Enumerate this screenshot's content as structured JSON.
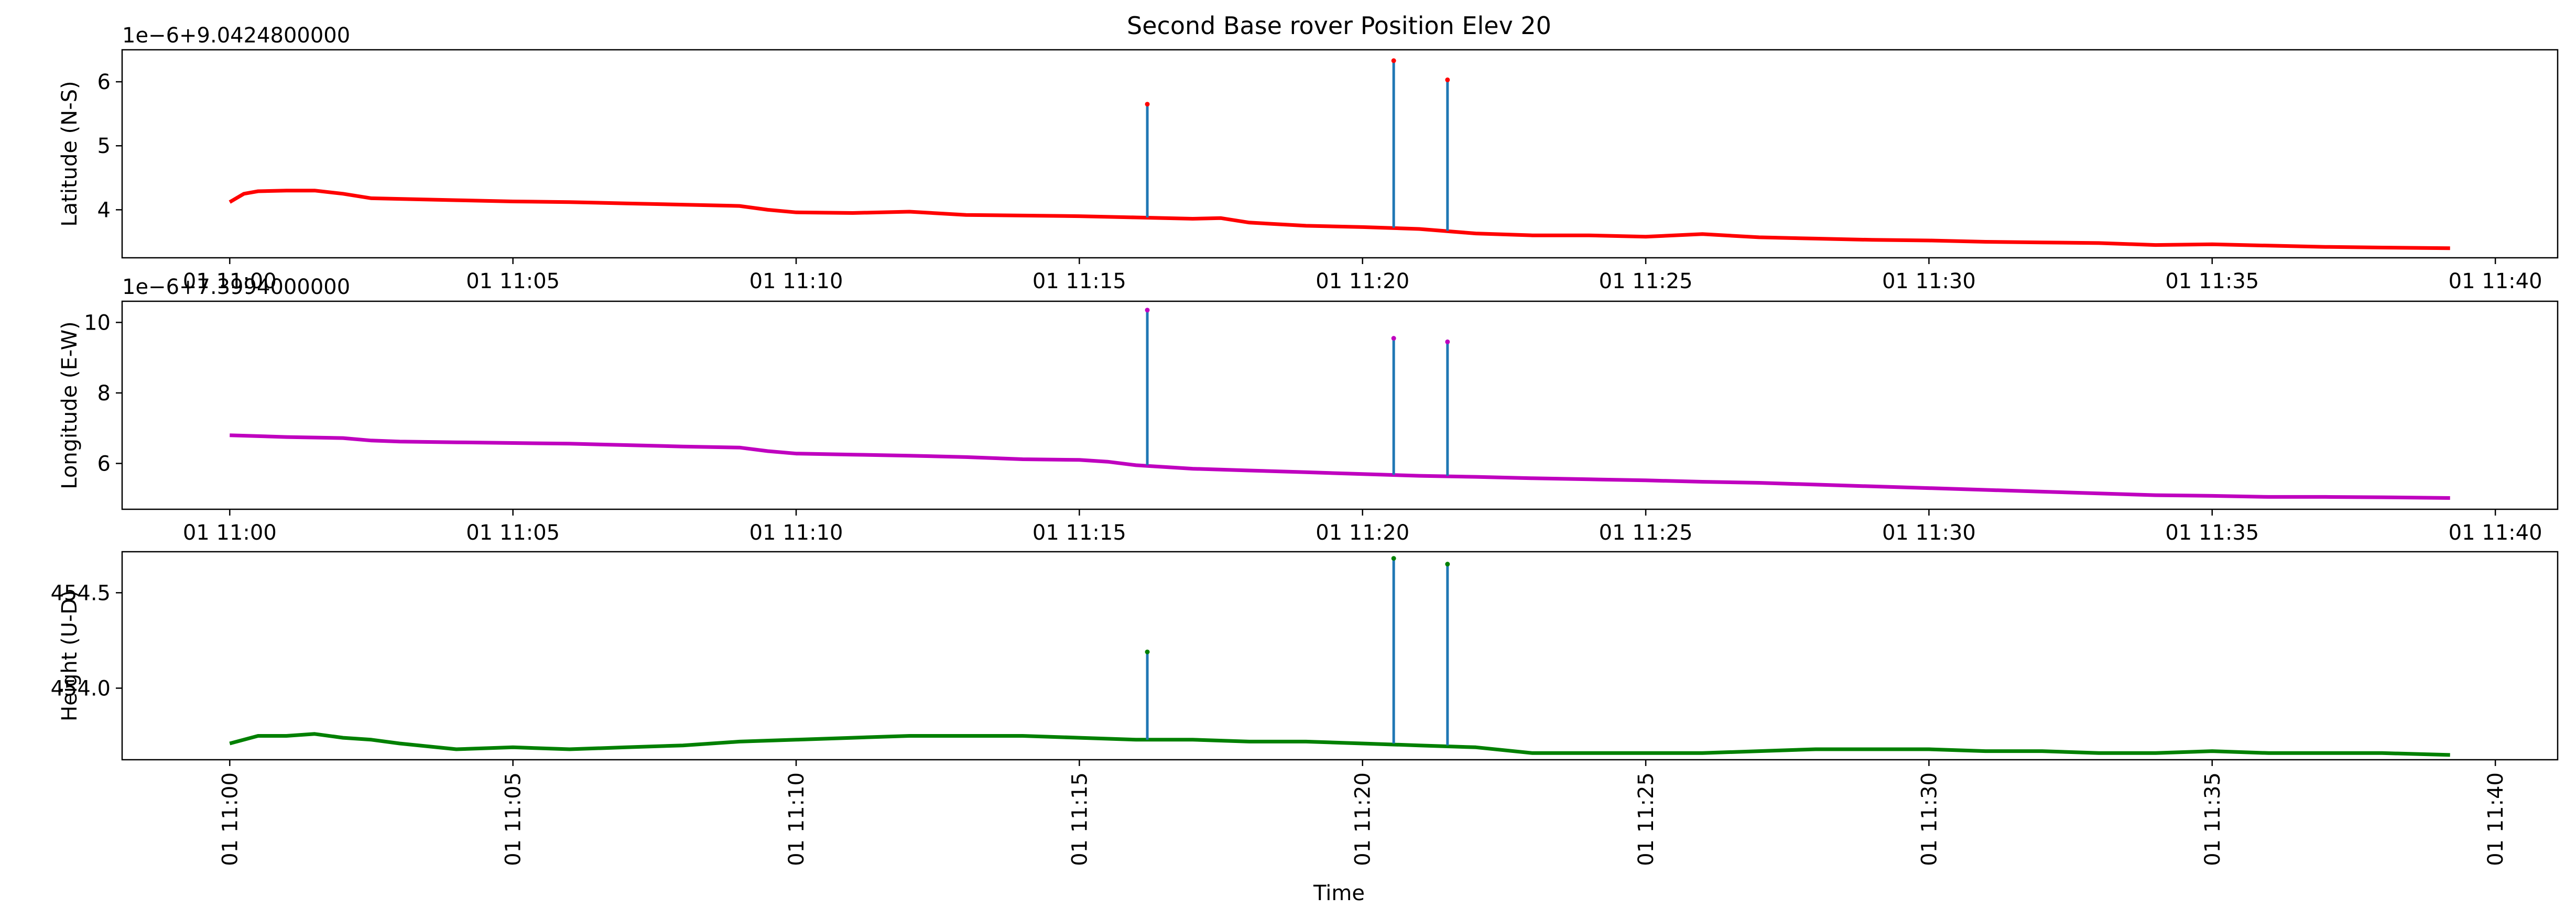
{
  "figure_title": "Second Base rover Position Elev 20",
  "x_axis_label": "Time",
  "chart_data": [
    {
      "type": "line",
      "ylabel": "Latitude (N-S)",
      "offset_text": "1e−6+9.0424800000",
      "x_tick_labels": [
        "01 11:00",
        "01 11:05",
        "01 11:10",
        "01 11:15",
        "01 11:20",
        "01 11:25",
        "01 11:30",
        "01 11:35",
        "01 11:40"
      ],
      "x_tick_minutes": [
        0,
        5,
        10,
        15,
        20,
        25,
        30,
        35,
        40
      ],
      "x_range_minutes": [
        -1.9,
        41.1
      ],
      "y_tick_labels": [
        "4",
        "5",
        "6"
      ],
      "y_ticks": [
        4,
        5,
        6
      ],
      "ylim": [
        3.25,
        6.5
      ],
      "line_color": "#ff0000",
      "spike_color": "#1f77b4",
      "spike_marker_color": "#ff0000",
      "grid": false,
      "series": [
        {
          "x_minutes": [
            0,
            0.25,
            0.5,
            1,
            1.5,
            2,
            2.5,
            3,
            4,
            5,
            6,
            7,
            8,
            9,
            9.5,
            10,
            11,
            12,
            13,
            14,
            15,
            16,
            17,
            17.5,
            18,
            19,
            20,
            21,
            22,
            23,
            24,
            25,
            26,
            27,
            28,
            29,
            30,
            31,
            32,
            33,
            34,
            35,
            36,
            37,
            38,
            39.2
          ],
          "values": [
            4.12,
            4.25,
            4.29,
            4.3,
            4.3,
            4.25,
            4.18,
            4.17,
            4.15,
            4.13,
            4.12,
            4.1,
            4.08,
            4.06,
            4.0,
            3.96,
            3.95,
            3.97,
            3.92,
            3.91,
            3.9,
            3.88,
            3.86,
            3.87,
            3.8,
            3.75,
            3.73,
            3.7,
            3.63,
            3.6,
            3.6,
            3.58,
            3.62,
            3.57,
            3.55,
            3.53,
            3.52,
            3.5,
            3.49,
            3.48,
            3.45,
            3.46,
            3.44,
            3.42,
            3.41,
            3.4
          ]
        }
      ],
      "spikes": [
        {
          "x_minutes": 16.2,
          "peak": 5.65,
          "base": 3.88
        },
        {
          "x_minutes": 20.55,
          "peak": 6.33,
          "base": 3.72
        },
        {
          "x_minutes": 21.5,
          "peak": 6.03,
          "base": 3.67
        }
      ]
    },
    {
      "type": "line",
      "ylabel": "Longitude (E-W)",
      "offset_text": "1e−6+7.3994000000",
      "x_tick_labels": [
        "01 11:00",
        "01 11:05",
        "01 11:10",
        "01 11:15",
        "01 11:20",
        "01 11:25",
        "01 11:30",
        "01 11:35",
        "01 11:40"
      ],
      "x_tick_minutes": [
        0,
        5,
        10,
        15,
        20,
        25,
        30,
        35,
        40
      ],
      "x_range_minutes": [
        -1.9,
        41.1
      ],
      "y_tick_labels": [
        "6",
        "8",
        "10"
      ],
      "y_ticks": [
        6,
        8,
        10
      ],
      "ylim": [
        4.7,
        10.6
      ],
      "line_color": "#bf00bf",
      "spike_color": "#1f77b4",
      "spike_marker_color": "#bf00bf",
      "grid": false,
      "series": [
        {
          "x_minutes": [
            0,
            1,
            2,
            2.5,
            3,
            4,
            5,
            6,
            7,
            8,
            9,
            9.5,
            10,
            11,
            12,
            13,
            14,
            15,
            15.5,
            16,
            17,
            18,
            19,
            20,
            21,
            22,
            23,
            24,
            25,
            26,
            27,
            28,
            29,
            30,
            31,
            32,
            33,
            34,
            35,
            36,
            37,
            38,
            39.2
          ],
          "values": [
            6.8,
            6.75,
            6.72,
            6.65,
            6.62,
            6.6,
            6.58,
            6.56,
            6.52,
            6.48,
            6.45,
            6.35,
            6.28,
            6.25,
            6.22,
            6.18,
            6.12,
            6.1,
            6.05,
            5.95,
            5.85,
            5.8,
            5.75,
            5.7,
            5.65,
            5.62,
            5.58,
            5.55,
            5.52,
            5.48,
            5.45,
            5.4,
            5.35,
            5.3,
            5.25,
            5.2,
            5.15,
            5.1,
            5.08,
            5.05,
            5.05,
            5.04,
            5.02
          ]
        }
      ],
      "spikes": [
        {
          "x_minutes": 16.2,
          "peak": 10.35,
          "base": 5.95
        },
        {
          "x_minutes": 20.55,
          "peak": 9.55,
          "base": 5.68
        },
        {
          "x_minutes": 21.5,
          "peak": 9.45,
          "base": 5.65
        }
      ]
    },
    {
      "type": "line",
      "ylabel": "Height (U-D)",
      "offset_text": "",
      "x_tick_labels": [
        "01 11:00",
        "01 11:05",
        "01 11:10",
        "01 11:15",
        "01 11:20",
        "01 11:25",
        "01 11:30",
        "01 11:35",
        "01 11:40"
      ],
      "x_tick_minutes": [
        0,
        5,
        10,
        15,
        20,
        25,
        30,
        35,
        40
      ],
      "x_range_minutes": [
        -1.9,
        41.1
      ],
      "y_tick_labels": [
        "454.0",
        "454.5"
      ],
      "y_ticks": [
        454.0,
        454.5
      ],
      "ylim": [
        453.625,
        454.715
      ],
      "line_color": "#008000",
      "spike_color": "#1f77b4",
      "spike_marker_color": "#008000",
      "grid": false,
      "series": [
        {
          "x_minutes": [
            0,
            0.5,
            1,
            1.5,
            2,
            2.5,
            3,
            4,
            5,
            6,
            7,
            8,
            9,
            10,
            11,
            12,
            13,
            14,
            15,
            16,
            17,
            18,
            19,
            20,
            21,
            22,
            23,
            24,
            25,
            26,
            27,
            28,
            29,
            30,
            31,
            32,
            33,
            34,
            35,
            36,
            37,
            38,
            39.2
          ],
          "values": [
            453.71,
            453.75,
            453.75,
            453.76,
            453.74,
            453.73,
            453.71,
            453.68,
            453.69,
            453.68,
            453.69,
            453.7,
            453.72,
            453.73,
            453.74,
            453.75,
            453.75,
            453.75,
            453.74,
            453.73,
            453.73,
            453.72,
            453.72,
            453.71,
            453.7,
            453.69,
            453.66,
            453.66,
            453.66,
            453.66,
            453.67,
            453.68,
            453.68,
            453.68,
            453.67,
            453.67,
            453.66,
            453.66,
            453.67,
            453.66,
            453.66,
            453.66,
            453.65
          ]
        }
      ],
      "spikes": [
        {
          "x_minutes": 16.2,
          "peak": 454.19,
          "base": 453.73
        },
        {
          "x_minutes": 20.55,
          "peak": 454.68,
          "base": 453.71
        },
        {
          "x_minutes": 21.5,
          "peak": 454.65,
          "base": 453.7
        }
      ]
    }
  ]
}
